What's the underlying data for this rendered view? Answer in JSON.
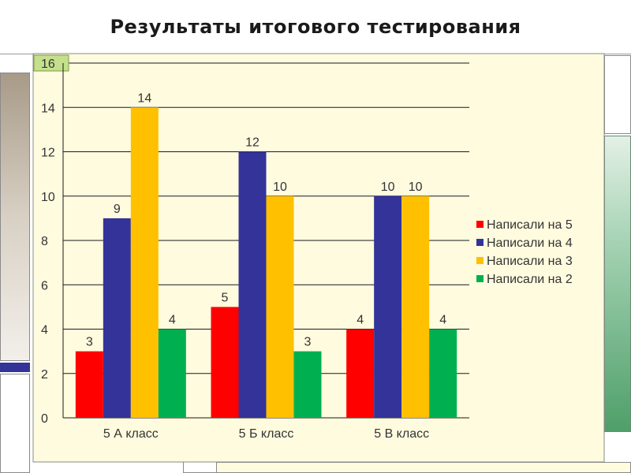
{
  "slide": {
    "title": "Результаты итогового тестирования"
  },
  "chart_data": {
    "type": "bar",
    "categories": [
      "5 А класс",
      "5 Б  класс",
      "5 В класс"
    ],
    "series": [
      {
        "name": "Написали на 5",
        "values": [
          3,
          5,
          4
        ],
        "color": "#ff0000"
      },
      {
        "name": "Написали на 4",
        "values": [
          9,
          12,
          10
        ],
        "color": "#333399"
      },
      {
        "name": "Написали на 3",
        "values": [
          14,
          10,
          10
        ],
        "color": "#ffc000"
      },
      {
        "name": "Написали на 2",
        "values": [
          4,
          3,
          4
        ],
        "color": "#00b050"
      }
    ],
    "yticks": [
      0,
      2,
      4,
      6,
      8,
      10,
      12,
      14,
      16
    ],
    "ylim": [
      0,
      16
    ],
    "legend": "right",
    "grid": true,
    "data_labels": true,
    "colors": {
      "plot_background": "#fffbdf",
      "gridline": "#1a1a1a",
      "top_tick_highlight": "#c4e08c"
    }
  }
}
